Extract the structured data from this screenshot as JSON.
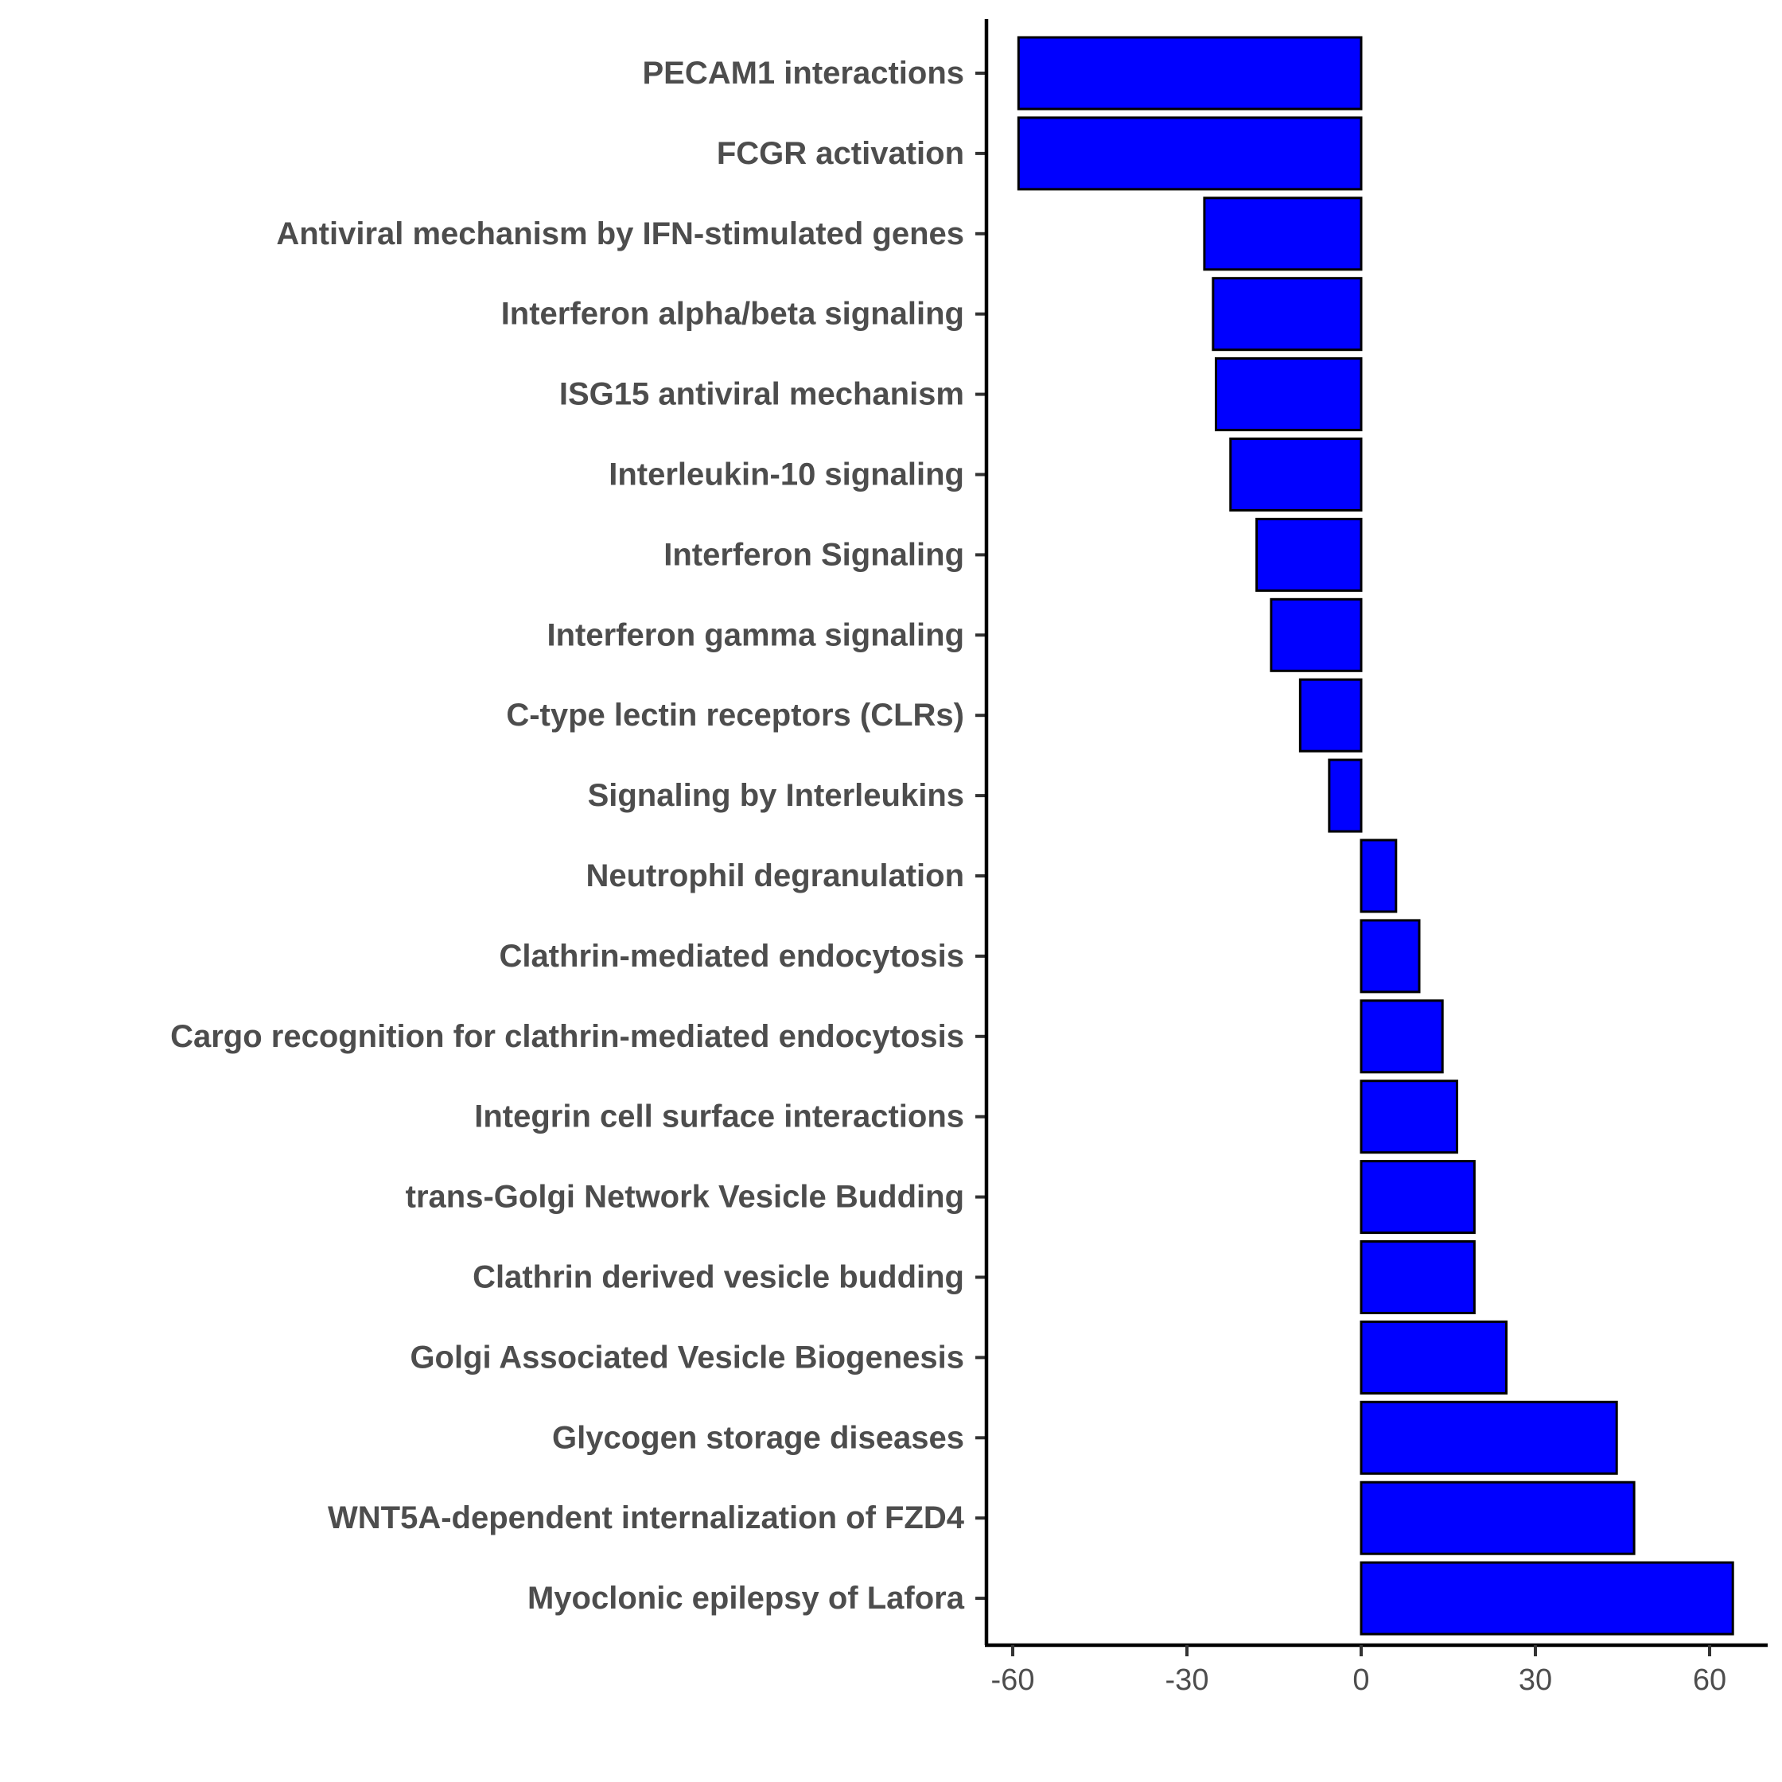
{
  "chart_data": {
    "type": "bar",
    "orientation": "horizontal",
    "title": "",
    "xlabel": "",
    "ylabel": "",
    "categories": [
      "PECAM1 interactions",
      "FCGR activation",
      "Antiviral mechanism by IFN-stimulated genes",
      "Interferon alpha/beta signaling",
      "ISG15 antiviral mechanism",
      "Interleukin-10 signaling",
      "Interferon Signaling",
      "Interferon gamma signaling",
      "C-type lectin receptors (CLRs)",
      "Signaling by Interleukins",
      "Neutrophil degranulation",
      "Clathrin-mediated endocytosis",
      "Cargo recognition for clathrin-mediated endocytosis",
      "Integrin cell surface interactions",
      "trans-Golgi Network Vesicle Budding",
      "Clathrin derived vesicle budding",
      "Golgi Associated Vesicle Biogenesis",
      "Glycogen storage diseases",
      "WNT5A-dependent internalization of FZD4",
      "Myoclonic epilepsy of Lafora"
    ],
    "values": [
      -59,
      -59,
      -27,
      -25.5,
      -25,
      -22.5,
      -18,
      -15.5,
      -10.5,
      -5.5,
      6,
      10,
      14,
      16.5,
      19.5,
      19.5,
      25,
      44,
      47,
      64
    ],
    "xlim": [
      -65,
      70
    ],
    "xticks": [
      -60,
      -30,
      0,
      30,
      60
    ],
    "xtick_labels": [
      "-60",
      "-30",
      "0",
      "30",
      "60"
    ],
    "bar_color": "#0000ff",
    "bar_edge_color": "#000000",
    "grid": false,
    "legend": "none"
  }
}
